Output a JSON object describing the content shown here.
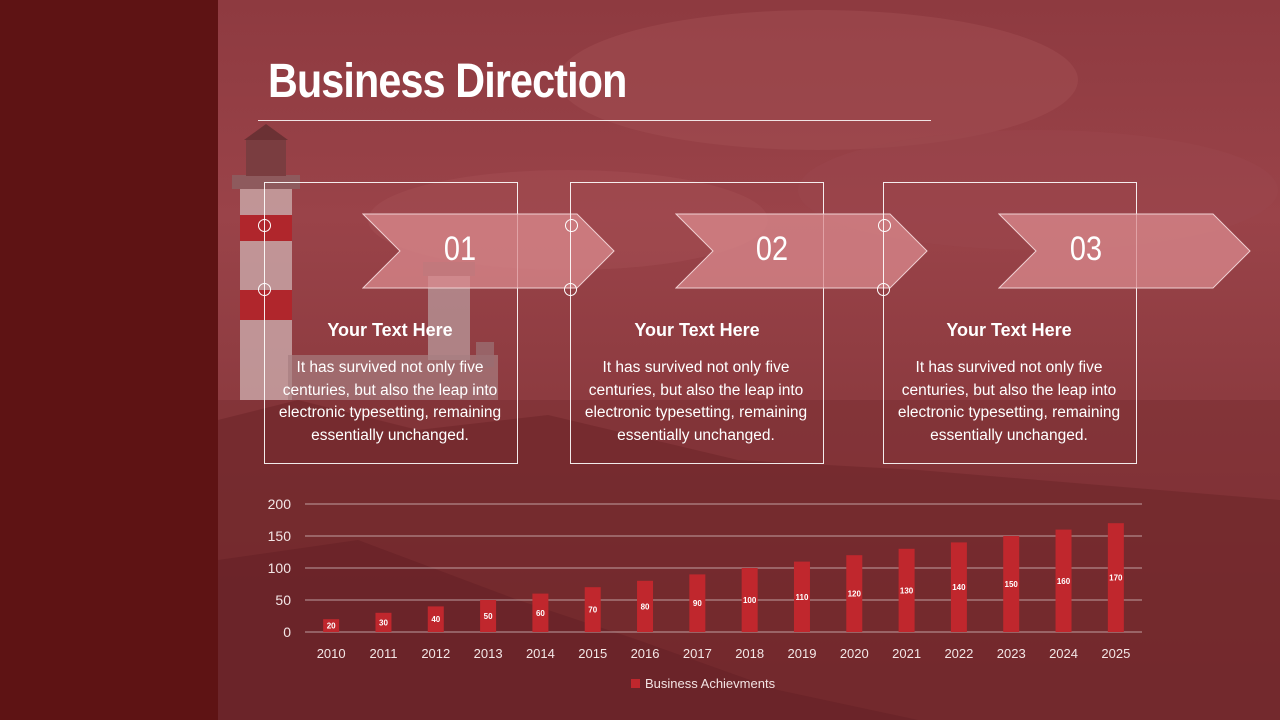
{
  "slide": {
    "title": "Business Direction",
    "colors": {
      "sidebar": "#5e1314",
      "overlay": "#8e3a40",
      "bar": "#c0272d",
      "arrow": "#d98a8e"
    }
  },
  "steps": [
    {
      "number": "01",
      "heading": "Your Text Here",
      "body": "It has survived not only five centuries, but also the leap into electronic typesetting, remaining essentially unchanged."
    },
    {
      "number": "02",
      "heading": "Your Text Here",
      "body": "It has survived not only five centuries, but also the leap into electronic typesetting, remaining essentially unchanged."
    },
    {
      "number": "03",
      "heading": "Your Text Here",
      "body": "It has survived not only five centuries, but also the leap into electronic typesetting, remaining essentially unchanged."
    }
  ],
  "chart_data": {
    "type": "bar",
    "categories": [
      "2010",
      "2011",
      "2012",
      "2013",
      "2014",
      "2015",
      "2016",
      "2017",
      "2018",
      "2019",
      "2020",
      "2021",
      "2022",
      "2023",
      "2024",
      "2025"
    ],
    "series": [
      {
        "name": "Business Achievments",
        "values": [
          20,
          30,
          40,
          50,
          60,
          70,
          80,
          90,
          100,
          110,
          120,
          130,
          140,
          150,
          160,
          170
        ]
      }
    ],
    "ylim": [
      0,
      200
    ],
    "yticks": [
      0,
      50,
      100,
      150,
      200
    ],
    "grid": true,
    "legend": "bottom",
    "data_labels": true
  }
}
